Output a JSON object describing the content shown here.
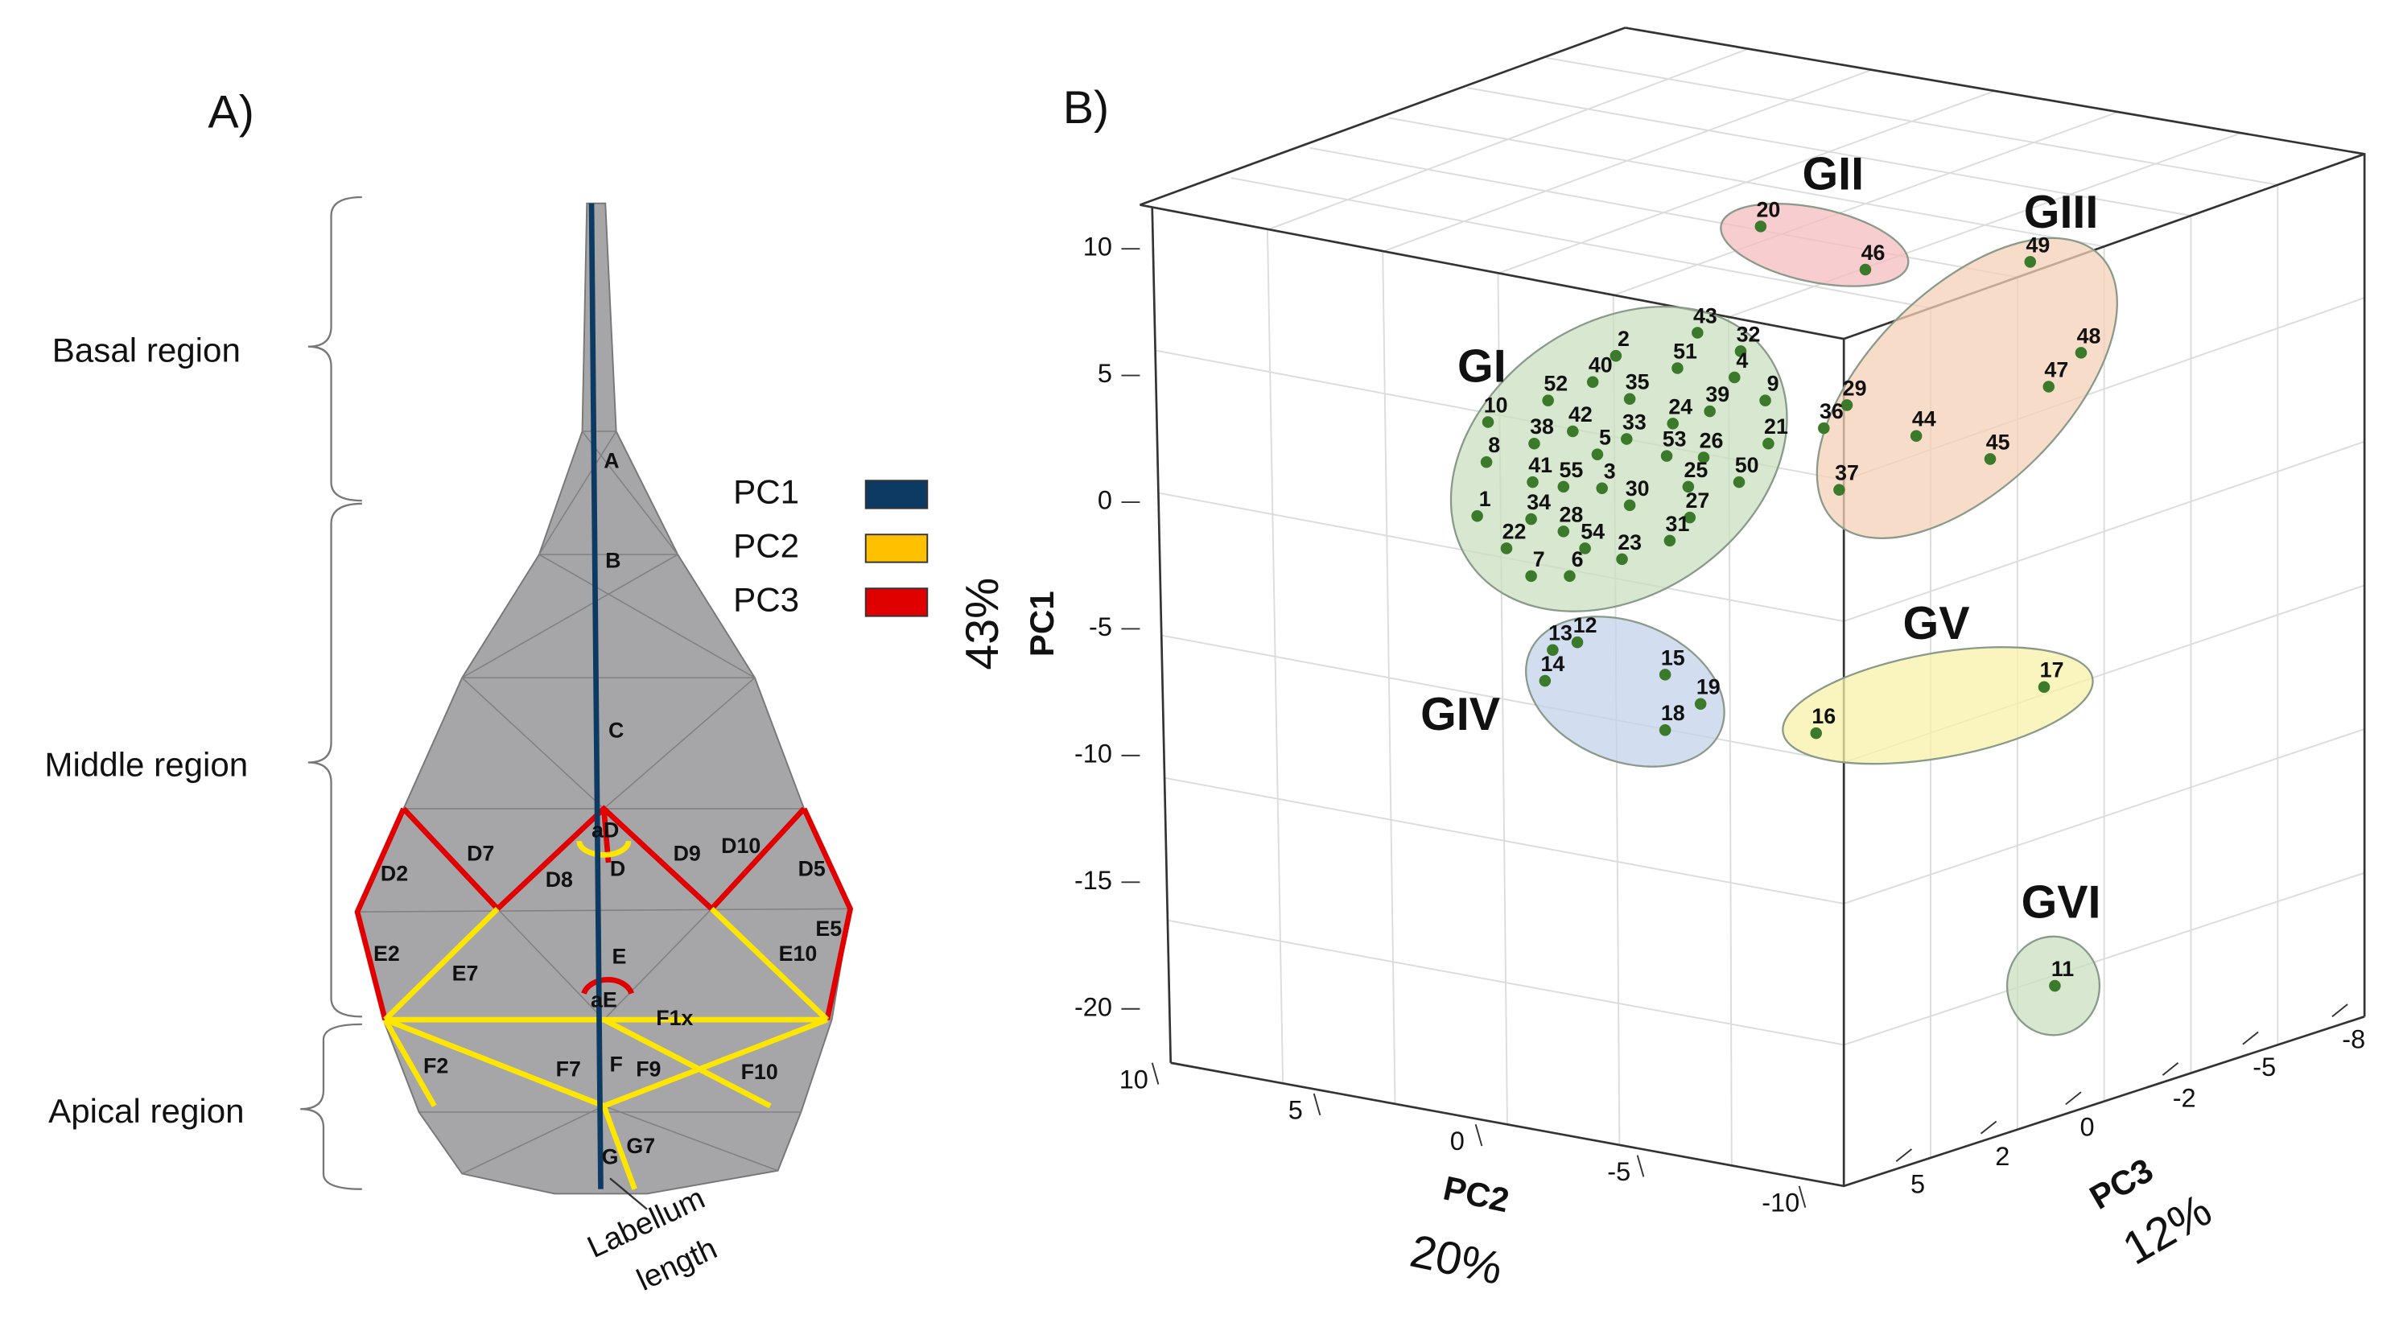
{
  "panel_a": {
    "label": "A)",
    "regions": [
      "Basal region",
      "Middle region",
      "Apical region"
    ],
    "legend": [
      {
        "name": "PC1",
        "color": "#0c3a63"
      },
      {
        "name": "PC2",
        "color": "#ffc000"
      },
      {
        "name": "PC3",
        "color": "#e00000"
      }
    ],
    "segment_labels": [
      "A",
      "B",
      "C",
      "aD",
      "D",
      "D2",
      "D7",
      "D8",
      "D9",
      "D10",
      "D5",
      "E2",
      "E7",
      "E",
      "aE",
      "E10",
      "E5",
      "F1x",
      "F2",
      "F7",
      "F",
      "F9",
      "F10",
      "G",
      "G7"
    ],
    "length_label": [
      "Labellum",
      "length"
    ]
  },
  "panel_b": {
    "label": "B)",
    "axes": {
      "pc1": {
        "name": "PC1",
        "variance": "43%",
        "ticks": [
          10,
          5,
          0,
          -5,
          -10,
          -15,
          -20
        ]
      },
      "pc2": {
        "name": "PC2",
        "variance": "20%",
        "ticks": [
          10,
          5,
          0,
          -5,
          -10
        ]
      },
      "pc3": {
        "name": "PC3",
        "variance": "12%",
        "ticks": [
          5,
          2,
          0,
          -2,
          -5,
          -8
        ]
      }
    },
    "groups": [
      {
        "name": "GI",
        "color": "#c9dfc0",
        "points": [
          "43",
          "2",
          "32",
          "51",
          "40",
          "35",
          "4",
          "9",
          "52",
          "39",
          "24",
          "10",
          "42",
          "33",
          "38",
          "21",
          "8",
          "5",
          "53",
          "26",
          "41",
          "55",
          "3",
          "25",
          "50",
          "30",
          "1",
          "34",
          "27",
          "28",
          "22",
          "54",
          "31",
          "23",
          "7",
          "6"
        ]
      },
      {
        "name": "GII",
        "color": "#f6bcc0",
        "points": [
          "20",
          "46"
        ]
      },
      {
        "name": "GIII",
        "color": "#f5d0b8",
        "points": [
          "49",
          "48",
          "47",
          "29",
          "44",
          "36",
          "45",
          "37"
        ]
      },
      {
        "name": "GIV",
        "color": "#c3d3ea",
        "points": [
          "13",
          "12",
          "14",
          "15",
          "19",
          "18"
        ]
      },
      {
        "name": "GV",
        "color": "#f8f2a8",
        "points": [
          "16",
          "17"
        ]
      },
      {
        "name": "GVI",
        "color": "#c9dfc0",
        "points": [
          "11"
        ]
      }
    ]
  }
}
